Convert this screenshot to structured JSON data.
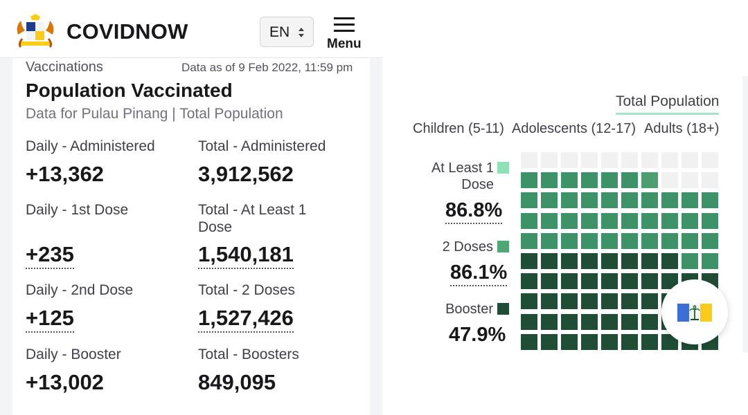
{
  "header": {
    "brand": "COVIDNOW",
    "language": "EN",
    "menu_label": "Menu"
  },
  "card": {
    "section": "Vaccinations",
    "as_of": "Data as of 9 Feb 2022, 11:59 pm",
    "title": "Population Vaccinated",
    "subtitle": "Data for Pulau Pinang | Total Population",
    "stats": [
      {
        "label": "Daily - Administered",
        "value": "+13,362"
      },
      {
        "label": "Total - Administered",
        "value": "3,912,562"
      },
      {
        "label": "Daily - 1st Dose",
        "value": "+235"
      },
      {
        "label": "Total - At Least 1 Dose",
        "value": "1,540,181"
      },
      {
        "label": "Daily - 2nd Dose",
        "value": "+125"
      },
      {
        "label": "Total - 2 Doses",
        "value": "1,527,426"
      },
      {
        "label": "Daily - Booster",
        "value": "+13,002"
      },
      {
        "label": "Total - Boosters",
        "value": "849,095"
      }
    ]
  },
  "filters": {
    "total_tab": "Total Population",
    "age_tabs": [
      "Children (5-11)",
      "Adolescents (12-17)",
      "Adults (18+)"
    ]
  },
  "legend": [
    {
      "label": "At Least 1 Dose",
      "percent": "86.8%",
      "color": "#86efac"
    },
    {
      "label": "2 Doses",
      "percent": "86.1%",
      "color": "#4ade80"
    },
    {
      "label": "Booster",
      "percent": "47.9%",
      "color": "#166534"
    }
  ],
  "waffle": {
    "total_cells": 100,
    "at_least_1_dose_pct": 86.8,
    "two_doses_pct": 86.1,
    "booster_pct": 47.9,
    "colors": {
      "empty": "#f1f1f2",
      "at_least_1": "#4c9e70",
      "two_doses": "#3d9367",
      "booster": "#1f4d36"
    }
  },
  "icons": {
    "logo": "malaysia-coat-of-arms-icon",
    "lang_arrows": "updown-arrows-icon",
    "menu": "hamburger-menu-icon",
    "flag": "pulau-pinang-flag-icon"
  }
}
